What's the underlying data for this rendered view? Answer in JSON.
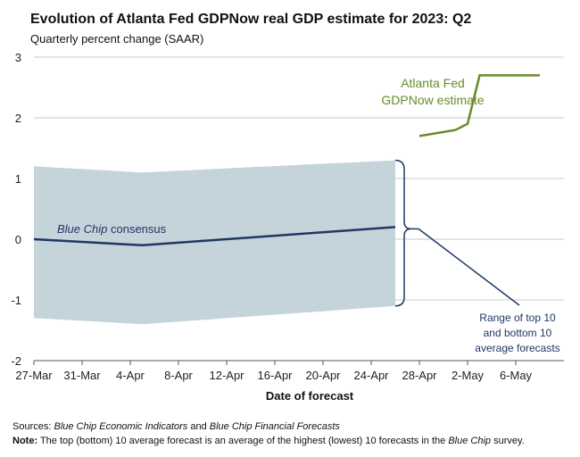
{
  "title": "Evolution of Atlanta Fed GDPNow real GDP estimate for 2023: Q2",
  "subtitle": "Quarterly percent change (SAAR)",
  "sources": {
    "label": "Sources:",
    "text_1": "Blue Chip Economic Indicators",
    "text_2": " and ",
    "text_3": "Blue Chip Financial Forecasts"
  },
  "note": {
    "label": "Note:",
    "text_1": " The top (bottom) 10 average forecast is an average of the highest (lowest) 10 forecasts in the ",
    "text_2": "Blue Chip",
    "text_3": " survey."
  },
  "colors": {
    "consensus": "#1f3864",
    "range_fill": "#c5d3db",
    "gdpnow": "#6a8a2c",
    "grid": "#c8c8c8"
  },
  "chart_data": {
    "type": "line",
    "xlabel": "Date of forecast",
    "ylabel": "",
    "ylim": [
      -2,
      3
    ],
    "yticks": [
      3,
      2,
      1,
      0,
      -1,
      -2
    ],
    "x_start": "2023-03-27",
    "x_end": "2023-05-10",
    "xticks": [
      "27-Mar",
      "31-Mar",
      "4-Apr",
      "8-Apr",
      "12-Apr",
      "16-Apr",
      "20-Apr",
      "24-Apr",
      "28-Apr",
      "2-May",
      "6-May"
    ],
    "xtick_dates": [
      "2023-03-27",
      "2023-03-31",
      "2023-04-04",
      "2023-04-08",
      "2023-04-12",
      "2023-04-16",
      "2023-04-20",
      "2023-04-24",
      "2023-04-28",
      "2023-05-02",
      "2023-05-06"
    ],
    "grid": "horizontal",
    "series": [
      {
        "name": "Blue Chip consensus",
        "name_parts": [
          "Blue Chip",
          " consensus"
        ],
        "x": [
          "2023-03-27",
          "2023-04-05",
          "2023-04-26"
        ],
        "y": [
          0.0,
          -0.1,
          0.2
        ]
      },
      {
        "name": "Atlanta Fed GDPNow estimate",
        "name_lines": [
          "Atlanta Fed",
          "GDPNow estimate"
        ],
        "x": [
          "2023-04-28",
          "2023-05-01",
          "2023-05-02",
          "2023-05-03",
          "2023-05-08"
        ],
        "y": [
          1.7,
          1.8,
          1.9,
          2.7,
          2.7
        ]
      }
    ],
    "range_band": {
      "label_lines": [
        "Range of top 10",
        "and bottom 10",
        "average forecasts"
      ],
      "x": [
        "2023-03-27",
        "2023-04-05",
        "2023-04-26"
      ],
      "upper": [
        1.2,
        1.1,
        1.3
      ],
      "lower": [
        -1.3,
        -1.4,
        -1.1
      ]
    }
  }
}
